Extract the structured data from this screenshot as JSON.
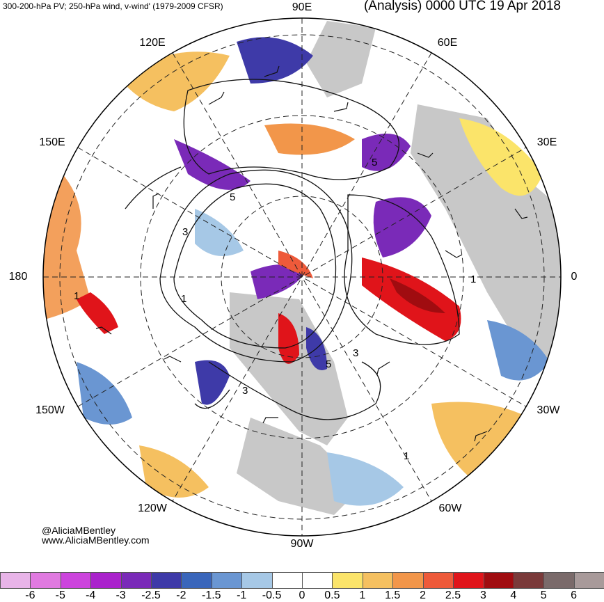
{
  "header": {
    "left_title": "300-200-hPa PV; 250-hPa wind, v-wind' (1979-2009 CFSR)",
    "right_title": "(Analysis) 0000 UTC 19 Apr 2018"
  },
  "longitude_labels": {
    "e90": "90E",
    "e60": "60E",
    "e30": "30E",
    "zero": "0",
    "w30": "30W",
    "w60": "60W",
    "w90": "90W",
    "w120": "120W",
    "w150": "150W",
    "d180": "180",
    "e150": "150E",
    "e120": "120E"
  },
  "contour_labels": [
    "5",
    "3",
    "5",
    "3",
    "5",
    "3",
    "1",
    "1",
    "1",
    "1"
  ],
  "credit": {
    "name": "@AliciaMBentley",
    "url": "www.AliciaMBentley.com"
  },
  "colorbar": {
    "ticks": [
      "-6",
      "-5",
      "-4",
      "-3",
      "-2.5",
      "-2",
      "-1.5",
      "-1",
      "-0.5",
      "0",
      "0.5",
      "1",
      "1.5",
      "2",
      "2.5",
      "3",
      "4",
      "5",
      "6"
    ],
    "colors": [
      "#e8b4e8",
      "#e07ae0",
      "#cc44dd",
      "#aa22cc",
      "#7a2ab8",
      "#3e3aa8",
      "#3a66bb",
      "#6a96d2",
      "#a6c8e6",
      "#ffffff",
      "#ffffff",
      "#fbe46a",
      "#f5c060",
      "#f2964a",
      "#ee5a3a",
      "#e0141a",
      "#a00c10",
      "#7a3a3a",
      "#7a6a6a",
      "#a89a9a"
    ]
  }
}
